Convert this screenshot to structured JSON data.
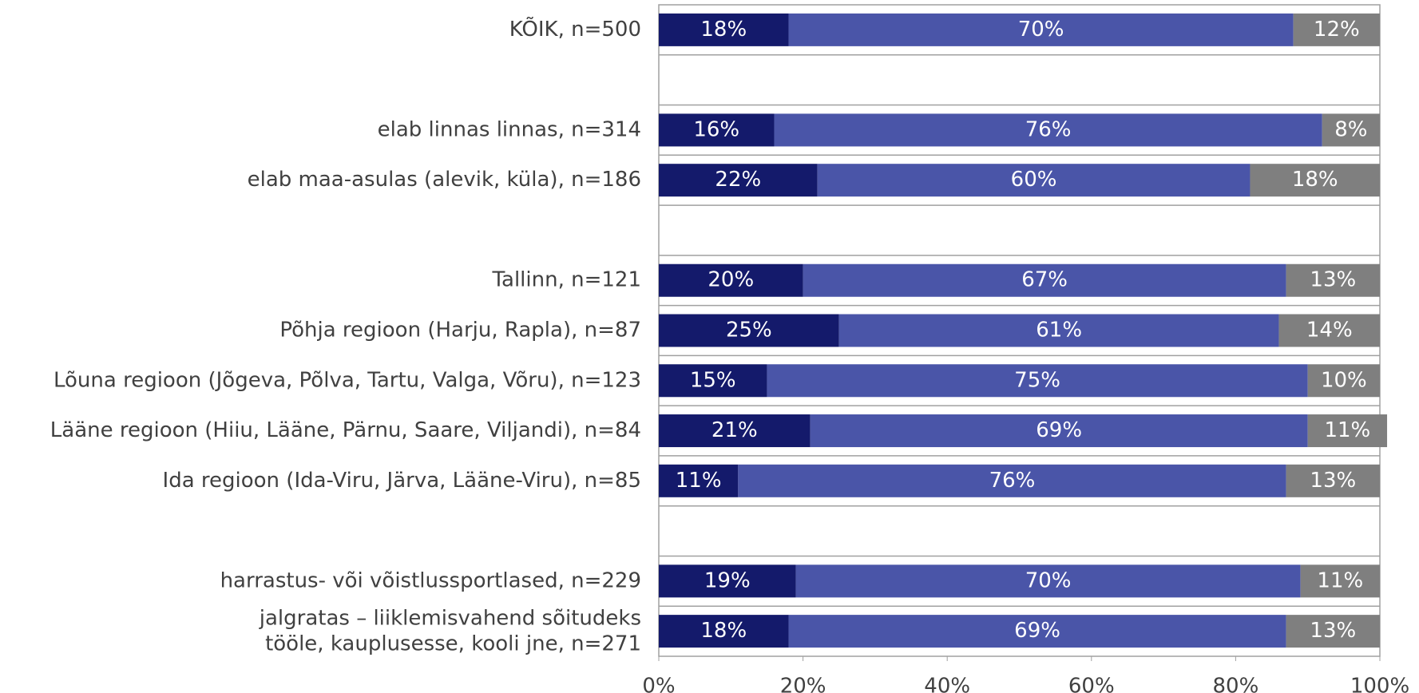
{
  "chart_data": {
    "type": "stacked_barh",
    "categories": [
      "KÕIK, n=500",
      null,
      "elab linnas linnas, n=314",
      "elab maa-asulas (alevik, küla), n=186",
      null,
      "Tallinn, n=121",
      "Põhja regioon (Harju, Rapla), n=87",
      "Lõuna regioon (Jõgeva, Põlva, Tartu, Valga, Võru), n=123",
      "Lääne regioon (Hiiu, Lääne, Pärnu, Saare, Viljandi), n=84",
      "Ida regioon (Ida-Viru, Järva, Lääne-Viru), n=85",
      null,
      "harrastus- või võistlussportlased, n=229",
      "jalgratas – liiklemisvahend sõitudeks\ntööle, kauplusesse, kooli jne, n=271"
    ],
    "series": [
      {
        "color": "#141a6b",
        "values": [
          18,
          null,
          16,
          22,
          null,
          20,
          25,
          15,
          21,
          11,
          null,
          19,
          18
        ],
        "value_labels": [
          "18%",
          null,
          "16%",
          "22%",
          null,
          "20%",
          "25%",
          "15%",
          "21%",
          "11%",
          null,
          "19%",
          "18%"
        ]
      },
      {
        "color": "#4a55a8",
        "values": [
          70,
          null,
          76,
          60,
          null,
          67,
          61,
          75,
          69,
          76,
          null,
          70,
          69
        ],
        "value_labels": [
          "70%",
          null,
          "76%",
          "60%",
          null,
          "67%",
          "61%",
          "75%",
          "69%",
          "76%",
          null,
          "70%",
          "69%"
        ]
      },
      {
        "color": "#7f7f7f",
        "values": [
          12,
          null,
          8,
          18,
          null,
          13,
          14,
          10,
          11,
          13,
          null,
          11,
          13
        ],
        "value_labels": [
          "12%",
          null,
          "8%",
          "18%",
          null,
          "13%",
          "14%",
          "10%",
          "11%",
          "13%",
          null,
          "11%",
          "13%"
        ]
      }
    ],
    "xlim": [
      0,
      100
    ],
    "xticks": [
      {
        "value": 0,
        "label": "0%"
      },
      {
        "value": 20,
        "label": "20%"
      },
      {
        "value": 40,
        "label": "40%"
      },
      {
        "value": 60,
        "label": "60%"
      },
      {
        "value": 80,
        "label": "80%"
      },
      {
        "value": 100,
        "label": "100%"
      }
    ]
  }
}
